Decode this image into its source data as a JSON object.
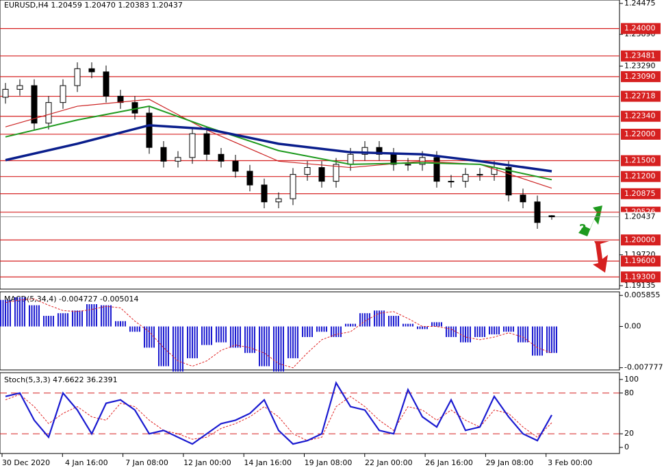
{
  "chart_data": {
    "type": "candlestick",
    "title": "EURUSD,H4 1.20459 1.20470 1.20383 1.20437",
    "annotation": "?",
    "dates": [
      "30 Dec 2020",
      "4 Jan 16:00",
      "7 Jan 08:00",
      "12 Jan 00:00",
      "14 Jan 16:00",
      "19 Jan 08:00",
      "22 Jan 00:00",
      "26 Jan 16:00",
      "29 Jan 08:00",
      "3 Feb 00:00"
    ],
    "ylim": [
      1.19135,
      1.24475
    ],
    "yticks": [
      1.24475,
      {
        "value": 1.2389,
        "label": "1.23890"
      },
      {
        "value": 1.2329,
        "label": "1.23290"
      },
      {
        "value": 1.1972,
        "label": "1.19720"
      },
      1.19135
    ],
    "current_price": 1.20437,
    "levels": [
      {
        "value": 1.24,
        "label": "1.24000"
      },
      1.23481,
      {
        "value": 1.2309,
        "label": "1.23090"
      },
      1.22718,
      {
        "value": 1.2234,
        "label": "1.22340"
      },
      {
        "value": 1.22,
        "label": "1.22000"
      },
      {
        "value": 1.215,
        "label": "1.21500"
      },
      {
        "value": 1.212,
        "label": "1.21200"
      },
      {
        "value": 1.20875,
        "label": "1.20875"
      },
      1.20526,
      {
        "value": 1.2,
        "label": "1.20000"
      },
      {
        "value": 1.196,
        "label": "1.19600"
      },
      {
        "value": 1.193,
        "label": "1.19300"
      }
    ],
    "level_color": "#d62020",
    "open": [
      1.227,
      1.2285,
      1.2292,
      1.2221,
      1.226,
      1.2292,
      1.2324,
      1.2318,
      1.2272,
      1.226,
      1.224,
      1.2175,
      1.2149,
      1.2156,
      1.2201,
      1.2162,
      1.2149,
      1.213,
      1.2104,
      1.2072,
      1.2078,
      1.2124,
      1.2137,
      1.2111,
      1.2143,
      1.2162,
      1.2175,
      1.2162,
      1.2143,
      1.2143,
      1.2156,
      1.2111,
      1.2111,
      1.2124,
      1.2124,
      1.2137,
      1.2085,
      1.2072,
      1.20459
    ],
    "high": [
      1.2297,
      1.2304,
      1.2304,
      1.2272,
      1.2304,
      1.2336,
      1.2336,
      1.233,
      1.2284,
      1.2272,
      1.2252,
      1.2187,
      1.2168,
      1.2213,
      1.2213,
      1.2174,
      1.2161,
      1.2142,
      1.2116,
      1.209,
      1.2136,
      1.2149,
      1.2149,
      1.2155,
      1.2174,
      1.2187,
      1.2187,
      1.2174,
      1.2155,
      1.2168,
      1.2168,
      1.2123,
      1.2136,
      1.2136,
      1.2149,
      1.2149,
      1.2097,
      1.2084,
      1.2047
    ],
    "low": [
      1.2258,
      1.2273,
      1.2209,
      1.2209,
      1.2248,
      1.228,
      1.2306,
      1.226,
      1.2248,
      1.2228,
      1.2163,
      1.2137,
      1.2137,
      1.2144,
      1.215,
      1.2137,
      1.2118,
      1.2092,
      1.206,
      1.206,
      1.2066,
      1.2112,
      1.2099,
      1.2099,
      1.2131,
      1.215,
      1.215,
      1.2131,
      1.2131,
      1.2131,
      1.2099,
      1.2099,
      1.2099,
      1.2112,
      1.2112,
      1.2073,
      1.206,
      1.2021,
      1.20383
    ],
    "close": [
      1.2285,
      1.2292,
      1.2221,
      1.226,
      1.2292,
      1.2324,
      1.2318,
      1.2272,
      1.226,
      1.224,
      1.2175,
      1.2149,
      1.2156,
      1.2201,
      1.2162,
      1.2149,
      1.213,
      1.2104,
      1.2072,
      1.2078,
      1.2124,
      1.2137,
      1.2111,
      1.2143,
      1.2162,
      1.2175,
      1.2162,
      1.2143,
      1.2143,
      1.2156,
      1.2111,
      1.2111,
      1.2124,
      1.2124,
      1.2137,
      1.2085,
      1.2072,
      1.2033,
      1.20437
    ],
    "ma_x": [
      0,
      5,
      10,
      14,
      19,
      24,
      29,
      33,
      38
    ],
    "moving_averages": [
      {
        "color": "#cc2222",
        "values": [
          1.2214,
          1.2253,
          1.2266,
          1.2208,
          1.2149,
          1.2137,
          1.2149,
          1.2143,
          1.2098
        ]
      },
      {
        "color": "#1e9a1e",
        "values": [
          1.2195,
          1.2227,
          1.2253,
          1.2214,
          1.2169,
          1.2143,
          1.2146,
          1.2143,
          1.2114
        ]
      },
      {
        "color": "#0a1e8c",
        "values": [
          1.2151,
          1.2182,
          1.2217,
          1.221,
          1.2182,
          1.2166,
          1.2162,
          1.2149,
          1.213
        ]
      }
    ],
    "macd": {
      "title": "MACD(5,34,4) -0.004727 -0.005014",
      "ylim": [
        -0.0082,
        0.0064
      ],
      "yticks": [
        0.005855,
        {
          "value": 0,
          "label": "0.00"
        },
        -0.007777
      ],
      "color": "#1a1ad0",
      "signal_color": "#e02020",
      "values": [
        0.005,
        0.0055,
        0.004,
        0.002,
        0.0025,
        0.003,
        0.0042,
        0.004,
        0.001,
        -0.001,
        -0.004,
        -0.0075,
        -0.0085,
        -0.006,
        -0.0035,
        -0.003,
        -0.004,
        -0.005,
        -0.0075,
        -0.0085,
        -0.006,
        -0.002,
        -0.001,
        -0.002,
        0.0005,
        0.0025,
        0.003,
        0.002,
        0.0005,
        -0.0005,
        0.0008,
        -0.002,
        -0.003,
        -0.002,
        -0.0015,
        -0.001,
        -0.003,
        -0.0055,
        -0.005
      ],
      "signal": [
        0.0045,
        0.005,
        0.0052,
        0.004,
        0.003,
        0.0028,
        0.0032,
        0.0038,
        0.0035,
        0.001,
        -0.001,
        -0.004,
        -0.0065,
        -0.0075,
        -0.0065,
        -0.0045,
        -0.0035,
        -0.004,
        -0.005,
        -0.007,
        -0.0078,
        -0.005,
        -0.0025,
        -0.0015,
        -0.001,
        0.001,
        0.0025,
        0.0028,
        0.0015,
        0,
        0,
        -0.0005,
        -0.002,
        -0.0025,
        -0.002,
        -0.0012,
        -0.002,
        -0.004,
        -0.005
      ]
    },
    "stoch": {
      "title": "Stoch(5,3,3) 47.6622 36.2391",
      "ylim": [
        -8,
        109
      ],
      "yticks": [
        100,
        80,
        20,
        0
      ],
      "levels": [
        80,
        20
      ],
      "k_color": "#1a1ad0",
      "d_color": "#e02020",
      "k": [
        75,
        80,
        40,
        15,
        80,
        55,
        20,
        65,
        70,
        55,
        20,
        25,
        15,
        5,
        20,
        35,
        40,
        50,
        70,
        25,
        5,
        10,
        20,
        95,
        60,
        55,
        25,
        20,
        85,
        45,
        30,
        70,
        25,
        30,
        75,
        45,
        20,
        10,
        47.6622
      ],
      "d": [
        70,
        78,
        60,
        35,
        50,
        60,
        45,
        40,
        65,
        60,
        40,
        25,
        20,
        12,
        15,
        28,
        35,
        45,
        60,
        45,
        20,
        10,
        15,
        60,
        75,
        60,
        40,
        25,
        60,
        55,
        40,
        55,
        40,
        30,
        55,
        50,
        30,
        15,
        36.2391
      ]
    }
  }
}
